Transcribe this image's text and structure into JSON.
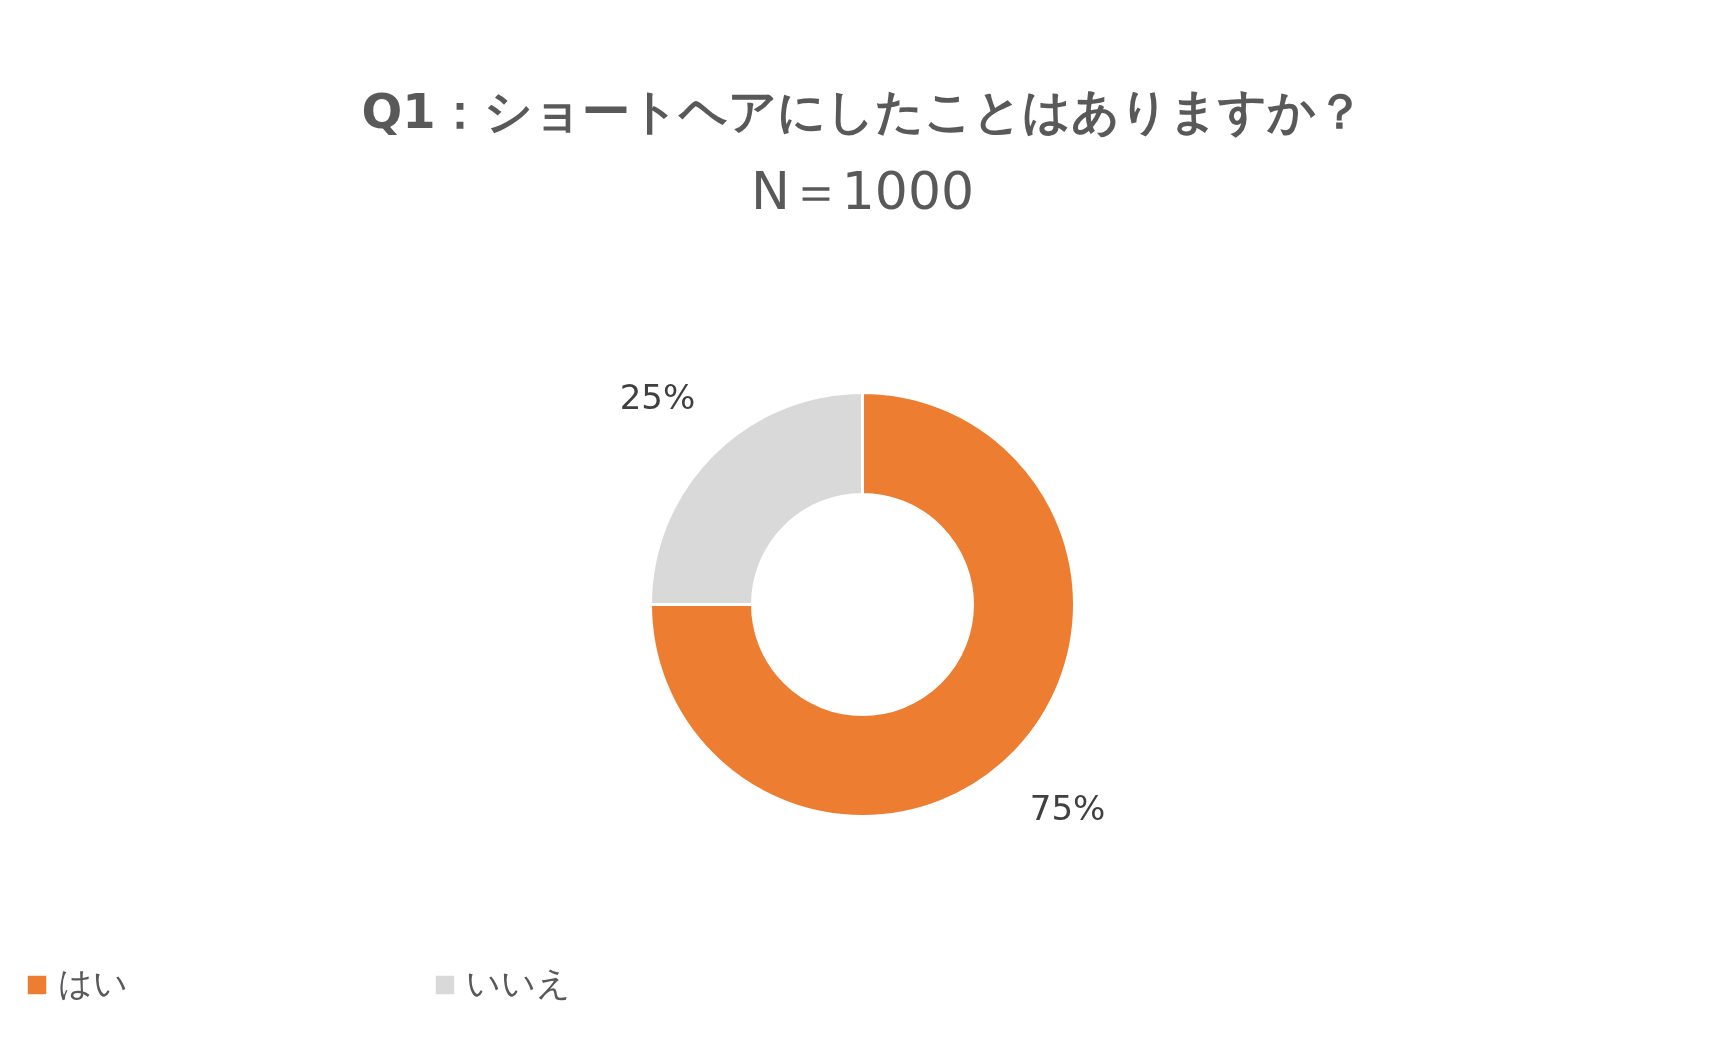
{
  "chart_data": {
    "type": "donut",
    "title": "Q1：ショートヘアにしたことはありますか？",
    "subtitle": "N＝1000",
    "categories": [
      "はい",
      "いいえ"
    ],
    "values": [
      75,
      25
    ],
    "colors": [
      "#ed7d31",
      "#d9d9d9"
    ],
    "value_labels": [
      "75%",
      "25%"
    ],
    "legend": "bottom"
  }
}
